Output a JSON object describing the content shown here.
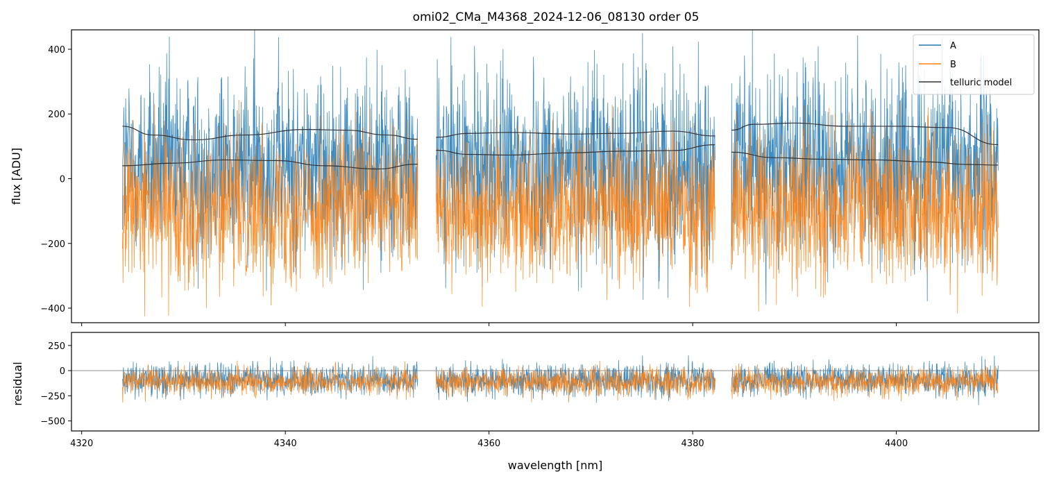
{
  "chart_data": {
    "type": "line",
    "title": "omi02_CMa_M4368_2024-12-06_08130  order 05",
    "xlabel": "wavelength [nm]",
    "xlim": [
      4319,
      4414
    ],
    "x_ticks": [
      4320,
      4340,
      4360,
      4380,
      4400
    ],
    "x_tick_labels": [
      "4320",
      "4340",
      "4360",
      "4380",
      "4400"
    ],
    "segments": [
      [
        4324.0,
        4353.0
      ],
      [
        4354.8,
        4382.2
      ],
      [
        4383.8,
        4410.0
      ]
    ],
    "colors": {
      "A": "#1f77b4",
      "B": "#ff7f0e",
      "telluric": "#333333",
      "zero_line": "#7f7f7f"
    },
    "panels": [
      {
        "id": "flux",
        "ylabel": "flux [ADU]",
        "ylim": [
          -445,
          460
        ],
        "y_ticks": [
          400,
          200,
          0,
          -200,
          -400
        ],
        "y_tick_labels": [
          "400",
          "200",
          "0",
          "−200",
          "−400"
        ],
        "series": [
          {
            "name": "A",
            "key": "A",
            "mean": 40,
            "noise_amplitude": 420
          },
          {
            "name": "B",
            "key": "B",
            "mean": -90,
            "noise_amplitude": 330
          }
        ],
        "telluric_model": {
          "name": "telluric model",
          "curves": [
            {
              "x": [
                4324,
                4327,
                4331,
                4336,
                4342,
                4346,
                4350,
                4353
              ],
              "y": [
                162,
                135,
                120,
                135,
                152,
                150,
                135,
                122
              ]
            },
            {
              "x": [
                4324,
                4329,
                4334,
                4339,
                4344,
                4349,
                4353
              ],
              "y": [
                40,
                48,
                58,
                56,
                40,
                30,
                45
              ]
            },
            {
              "x": [
                4354.8,
                4358,
                4362,
                4368,
                4373,
                4378,
                4382.2
              ],
              "y": [
                128,
                140,
                143,
                138,
                140,
                147,
                132
              ]
            },
            {
              "x": [
                4354.8,
                4358,
                4362,
                4368,
                4373,
                4378,
                4382.2
              ],
              "y": [
                88,
                75,
                73,
                80,
                85,
                87,
                105
              ]
            },
            {
              "x": [
                4383.8,
                4386,
                4390,
                4395,
                4400,
                4405,
                4410
              ],
              "y": [
                150,
                168,
                172,
                162,
                162,
                158,
                105
              ]
            },
            {
              "x": [
                4383.8,
                4388,
                4393,
                4398,
                4403,
                4407,
                4410
              ],
              "y": [
                82,
                65,
                60,
                58,
                52,
                44,
                42
              ]
            }
          ]
        }
      },
      {
        "id": "residual",
        "ylabel": "residual",
        "ylim": [
          -600,
          380
        ],
        "y_ticks": [
          250,
          0,
          -250,
          -500
        ],
        "y_tick_labels": [
          "250",
          "0",
          "−250",
          "−500"
        ],
        "zero_line": 0,
        "series": [
          {
            "name": "A",
            "key": "A",
            "mean": -90,
            "noise_amplitude": 230
          },
          {
            "name": "B",
            "key": "B",
            "mean": -110,
            "noise_amplitude": 200
          }
        ]
      }
    ],
    "legend": {
      "placement": "top-right",
      "entries": [
        {
          "label": "A",
          "key": "A"
        },
        {
          "label": "B",
          "key": "B"
        },
        {
          "label": "telluric model",
          "key": "telluric"
        }
      ]
    }
  }
}
